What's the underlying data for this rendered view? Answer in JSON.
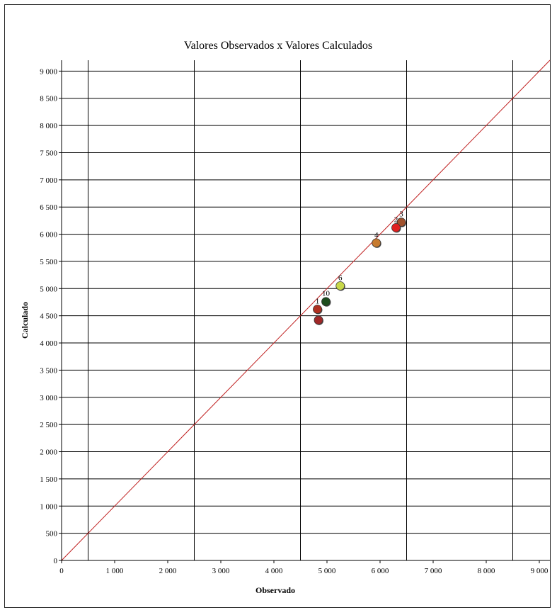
{
  "chart_data": {
    "type": "scatter",
    "title": "Valores Observados x Valores Calculados",
    "xlabel": "Observado",
    "ylabel": "Calculado",
    "xlim": [
      0,
      9200
    ],
    "ylim": [
      0,
      9200
    ],
    "x_ticks": [
      0,
      1000,
      2000,
      3000,
      4000,
      5000,
      6000,
      7000,
      8000,
      9000
    ],
    "x_tick_labels": [
      "0",
      "1 000",
      "2 000",
      "3 000",
      "4 000",
      "5 000",
      "6 000",
      "7 000",
      "8 000",
      "9 000"
    ],
    "y_ticks": [
      0,
      500,
      1000,
      1500,
      2000,
      2500,
      3000,
      3500,
      4000,
      4500,
      5000,
      5500,
      6000,
      6500,
      7000,
      7500,
      8000,
      8500,
      9000
    ],
    "y_tick_labels": [
      "0",
      "500",
      "1 000",
      "1 500",
      "2 000",
      "2 500",
      "3 000",
      "3 500",
      "4 000",
      "4 500",
      "5 000",
      "5 500",
      "6 000",
      "6 500",
      "7 000",
      "7 500",
      "8 000",
      "8 500",
      "9 000"
    ],
    "grid": {
      "horizontal": "at every y tick",
      "vertical_lines_x": [
        500,
        2500,
        4500,
        6500,
        8500
      ]
    },
    "reference_line": {
      "description": "identity line y = x",
      "color": "#c02020"
    },
    "points": [
      {
        "label": "3",
        "x": 6400,
        "y": 6220,
        "color": "#a0522d"
      },
      {
        "label": "2",
        "x": 6300,
        "y": 6120,
        "color": "#e02020"
      },
      {
        "label": "4",
        "x": 5930,
        "y": 5840,
        "color": "#c77a2e"
      },
      {
        "label": "6",
        "x": 5250,
        "y": 5050,
        "color": "#c8d84a"
      },
      {
        "label": "10",
        "x": 4980,
        "y": 4760,
        "color": "#1e4d1e"
      },
      {
        "label": "1",
        "x": 4820,
        "y": 4620,
        "color": "#b03020"
      },
      {
        "label": "",
        "x": 4840,
        "y": 4420,
        "color": "#a02828"
      }
    ]
  }
}
